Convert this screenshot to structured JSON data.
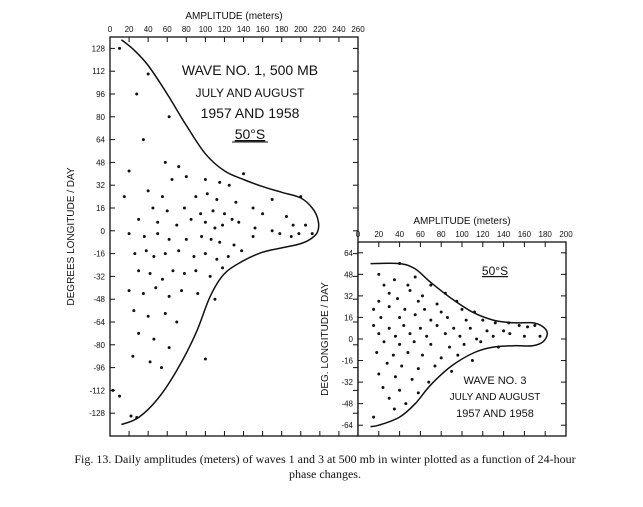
{
  "caption": "Fig. 13. Daily amplitudes (meters) of waves 1 and 3 at 500 mb in winter plotted as a function of 24-hour phase changes.",
  "chart_data": [
    {
      "type": "scatter",
      "xlabel": "AMPLITUDE (meters)",
      "ylabel": "DEGREES LONGITUDE / DAY",
      "xlim": [
        0,
        260
      ],
      "ylim": [
        -144,
        136
      ],
      "x_ticks": [
        0,
        20,
        40,
        60,
        80,
        100,
        120,
        140,
        160,
        180,
        200,
        220,
        240,
        260
      ],
      "y_ticks": [
        128,
        112,
        96,
        80,
        64,
        48,
        32,
        16,
        0,
        -16,
        -32,
        -48,
        -64,
        -80,
        -96,
        -112,
        -128
      ],
      "annotation": {
        "line1": "WAVE NO. 1, 500 MB",
        "line2": "JULY AND AUGUST",
        "line3": "1957 AND 1958",
        "latitude": "50°S"
      },
      "envelope": [
        [
          12,
          134
        ],
        [
          25,
          127
        ],
        [
          40,
          116
        ],
        [
          60,
          96
        ],
        [
          80,
          74
        ],
        [
          100,
          54
        ],
        [
          120,
          42
        ],
        [
          140,
          36
        ],
        [
          160,
          31
        ],
        [
          180,
          27
        ],
        [
          200,
          23
        ],
        [
          212,
          16
        ],
        [
          218,
          8
        ],
        [
          218,
          0
        ],
        [
          212,
          -5
        ],
        [
          200,
          -9
        ],
        [
          180,
          -12
        ],
        [
          160,
          -15
        ],
        [
          140,
          -21
        ],
        [
          120,
          -30
        ],
        [
          105,
          -46
        ],
        [
          90,
          -72
        ],
        [
          70,
          -98
        ],
        [
          50,
          -118
        ],
        [
          30,
          -131
        ],
        [
          12,
          -136
        ]
      ],
      "points": [
        [
          10,
          128
        ],
        [
          40,
          110
        ],
        [
          28,
          96
        ],
        [
          62,
          80
        ],
        [
          35,
          64
        ],
        [
          58,
          48
        ],
        [
          72,
          45
        ],
        [
          20,
          42
        ],
        [
          65,
          36
        ],
        [
          80,
          38
        ],
        [
          100,
          36
        ],
        [
          115,
          34
        ],
        [
          125,
          32
        ],
        [
          140,
          40
        ],
        [
          15,
          24
        ],
        [
          40,
          28
        ],
        [
          55,
          24
        ],
        [
          90,
          24
        ],
        [
          102,
          26
        ],
        [
          112,
          22
        ],
        [
          132,
          20
        ],
        [
          150,
          16
        ],
        [
          170,
          22
        ],
        [
          200,
          24
        ],
        [
          45,
          16
        ],
        [
          60,
          14
        ],
        [
          78,
          16
        ],
        [
          95,
          12
        ],
        [
          108,
          14
        ],
        [
          120,
          12
        ],
        [
          128,
          8
        ],
        [
          160,
          12
        ],
        [
          185,
          10
        ],
        [
          192,
          4
        ],
        [
          205,
          4
        ],
        [
          30,
          8
        ],
        [
          50,
          6
        ],
        [
          70,
          4
        ],
        [
          85,
          8
        ],
        [
          100,
          6
        ],
        [
          110,
          2
        ],
        [
          118,
          4
        ],
        [
          135,
          6
        ],
        [
          152,
          2
        ],
        [
          178,
          -2
        ],
        [
          190,
          -4
        ],
        [
          198,
          -2
        ],
        [
          212,
          -2
        ],
        [
          20,
          -2
        ],
        [
          36,
          -4
        ],
        [
          50,
          -2
        ],
        [
          62,
          -6
        ],
        [
          80,
          -6
        ],
        [
          96,
          -4
        ],
        [
          106,
          -6
        ],
        [
          115,
          -8
        ],
        [
          130,
          -10
        ],
        [
          150,
          -4
        ],
        [
          170,
          0
        ],
        [
          26,
          -16
        ],
        [
          38,
          -14
        ],
        [
          46,
          -18
        ],
        [
          58,
          -16
        ],
        [
          72,
          -14
        ],
        [
          88,
          -18
        ],
        [
          100,
          -16
        ],
        [
          112,
          -20
        ],
        [
          124,
          -18
        ],
        [
          138,
          -14
        ],
        [
          30,
          -28
        ],
        [
          42,
          -30
        ],
        [
          55,
          -34
        ],
        [
          66,
          -28
        ],
        [
          78,
          -30
        ],
        [
          90,
          -28
        ],
        [
          105,
          -32
        ],
        [
          118,
          -26
        ],
        [
          20,
          -42
        ],
        [
          35,
          -44
        ],
        [
          48,
          -40
        ],
        [
          62,
          -46
        ],
        [
          75,
          -42
        ],
        [
          92,
          -44
        ],
        [
          110,
          -48
        ],
        [
          25,
          -56
        ],
        [
          40,
          -60
        ],
        [
          58,
          -58
        ],
        [
          70,
          -64
        ],
        [
          30,
          -72
        ],
        [
          46,
          -76
        ],
        [
          62,
          -82
        ],
        [
          24,
          -88
        ],
        [
          42,
          -92
        ],
        [
          54,
          -96
        ],
        [
          100,
          -90
        ],
        [
          3,
          -112
        ],
        [
          10,
          -116
        ],
        [
          22,
          -130
        ],
        [
          28,
          -131
        ]
      ]
    },
    {
      "type": "scatter",
      "xlabel": "AMPLITUDE (meters)",
      "ylabel": "DEG. LONGITUDE / DAY",
      "xlim": [
        0,
        200
      ],
      "ylim": [
        -72,
        72
      ],
      "x_ticks": [
        0,
        20,
        40,
        60,
        80,
        100,
        120,
        140,
        160,
        180,
        200
      ],
      "y_ticks": [
        64,
        48,
        32,
        16,
        0,
        -16,
        -32,
        -48,
        -64
      ],
      "annotation": {
        "latitude": "50°S",
        "line1": "WAVE NO. 3",
        "line2": "JULY AND AUGUST",
        "line3": "1957 AND 1958"
      },
      "envelope": [
        [
          12,
          56
        ],
        [
          40,
          56
        ],
        [
          55,
          52
        ],
        [
          70,
          42
        ],
        [
          90,
          30
        ],
        [
          110,
          20
        ],
        [
          130,
          14
        ],
        [
          150,
          12
        ],
        [
          168,
          12
        ],
        [
          178,
          9
        ],
        [
          182,
          4
        ],
        [
          178,
          -2
        ],
        [
          168,
          -5
        ],
        [
          150,
          -5
        ],
        [
          130,
          -6
        ],
        [
          112,
          -10
        ],
        [
          90,
          -20
        ],
        [
          70,
          -34
        ],
        [
          55,
          -48
        ],
        [
          40,
          -58
        ],
        [
          20,
          -64
        ],
        [
          12,
          -65
        ]
      ],
      "points": [
        [
          40,
          56
        ],
        [
          20,
          48
        ],
        [
          35,
          44
        ],
        [
          55,
          46
        ],
        [
          25,
          40
        ],
        [
          48,
          40
        ],
        [
          70,
          40
        ],
        [
          30,
          34
        ],
        [
          50,
          36
        ],
        [
          62,
          32
        ],
        [
          84,
          34
        ],
        [
          20,
          28
        ],
        [
          38,
          30
        ],
        [
          58,
          28
        ],
        [
          76,
          26
        ],
        [
          95,
          28
        ],
        [
          15,
          22
        ],
        [
          30,
          24
        ],
        [
          45,
          22
        ],
        [
          64,
          22
        ],
        [
          80,
          20
        ],
        [
          100,
          22
        ],
        [
          112,
          20
        ],
        [
          22,
          16
        ],
        [
          40,
          16
        ],
        [
          55,
          18
        ],
        [
          70,
          14
        ],
        [
          86,
          16
        ],
        [
          104,
          14
        ],
        [
          120,
          14
        ],
        [
          132,
          12
        ],
        [
          145,
          12
        ],
        [
          15,
          10
        ],
        [
          30,
          8
        ],
        [
          44,
          10
        ],
        [
          60,
          8
        ],
        [
          76,
          10
        ],
        [
          92,
          8
        ],
        [
          108,
          8
        ],
        [
          124,
          6
        ],
        [
          140,
          6
        ],
        [
          155,
          10
        ],
        [
          163,
          9
        ],
        [
          170,
          10
        ],
        [
          20,
          4
        ],
        [
          36,
          2
        ],
        [
          50,
          4
        ],
        [
          66,
          2
        ],
        [
          84,
          4
        ],
        [
          98,
          2
        ],
        [
          114,
          0
        ],
        [
          130,
          2
        ],
        [
          146,
          4
        ],
        [
          160,
          2
        ],
        [
          175,
          2
        ],
        [
          25,
          -2
        ],
        [
          40,
          -4
        ],
        [
          54,
          -2
        ],
        [
          70,
          -4
        ],
        [
          88,
          -6
        ],
        [
          102,
          -4
        ],
        [
          118,
          -2
        ],
        [
          135,
          -6
        ],
        [
          18,
          -10
        ],
        [
          34,
          -12
        ],
        [
          48,
          -10
        ],
        [
          62,
          -12
        ],
        [
          80,
          -14
        ],
        [
          96,
          -12
        ],
        [
          110,
          -16
        ],
        [
          28,
          -18
        ],
        [
          42,
          -20
        ],
        [
          58,
          -22
        ],
        [
          74,
          -20
        ],
        [
          90,
          -24
        ],
        [
          20,
          -26
        ],
        [
          36,
          -28
        ],
        [
          52,
          -30
        ],
        [
          68,
          -32
        ],
        [
          24,
          -36
        ],
        [
          40,
          -38
        ],
        [
          58,
          -40
        ],
        [
          30,
          -44
        ],
        [
          46,
          -48
        ],
        [
          35,
          -52
        ],
        [
          15,
          -58
        ]
      ]
    }
  ]
}
